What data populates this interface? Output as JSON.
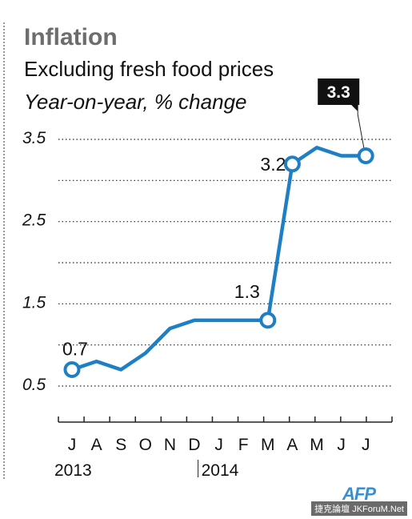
{
  "title": "Inflation",
  "subtitle": "Excluding fresh food prices",
  "subtitle2": "Year-on-year, % change",
  "source_logo": "AFP",
  "watermark": "捷克論壇 JKForuM.Net",
  "colors": {
    "line": "#1f7fc4",
    "text": "#111111",
    "title": "#6d6d6d",
    "highlight_bg": "#111111"
  },
  "chart_data": {
    "type": "line",
    "categories": [
      "J",
      "A",
      "S",
      "O",
      "N",
      "D",
      "J",
      "F",
      "M",
      "A",
      "M",
      "J",
      "J"
    ],
    "years": [
      {
        "label": "2013",
        "start_index": 0
      },
      {
        "label": "2014",
        "start_index": 6
      }
    ],
    "series": [
      {
        "values": [
          0.7,
          0.8,
          0.7,
          0.9,
          1.2,
          1.3,
          1.3,
          1.3,
          1.3,
          3.2,
          3.4,
          3.3,
          3.3
        ]
      }
    ],
    "markers": [
      {
        "index": 0,
        "label": "0.7"
      },
      {
        "index": 8,
        "label": "1.3"
      },
      {
        "index": 9,
        "label": "3.2"
      },
      {
        "index": 12,
        "label": "3.3",
        "highlight": true
      }
    ],
    "yticks": [
      {
        "value": 0.5,
        "label": "0.5"
      },
      {
        "value": 1.0,
        "label": ""
      },
      {
        "value": 1.5,
        "label": "1.5"
      },
      {
        "value": 2.0,
        "label": ""
      },
      {
        "value": 2.5,
        "label": "2.5"
      },
      {
        "value": 3.0,
        "label": ""
      },
      {
        "value": 3.5,
        "label": "3.5"
      }
    ],
    "ylim": [
      0.0,
      3.5
    ],
    "grid": true,
    "grid_style": "dotted"
  }
}
